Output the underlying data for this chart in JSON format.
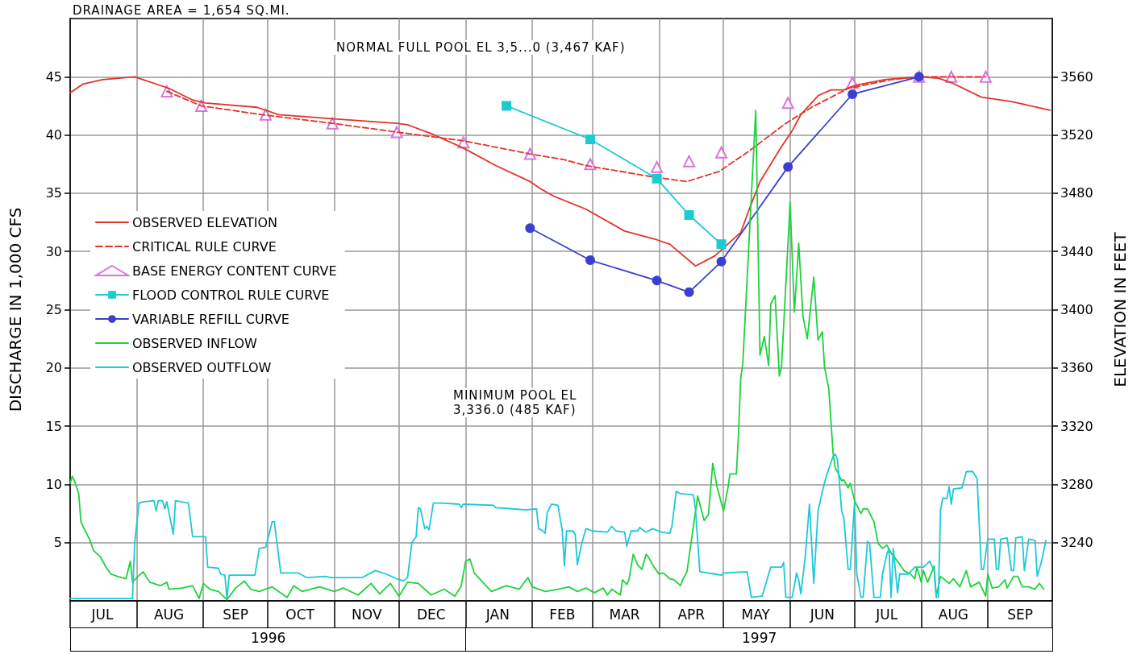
{
  "chart_data": {
    "type": "line",
    "ylabel": "DISCHARGE IN 1,000 CFS",
    "y2label": "ELEVATION IN FEET",
    "annotations": [
      "DRAINAGE AREA = 1,654 SQ.MI.",
      "NORMAL FULL POOL EL 3,5...0 (3,467 KAF)",
      "MINIMUM POOL EL\n3,336.0 (485 KAF)",
      "1996",
      "1997"
    ],
    "xlim": [
      "1996-07-01",
      "1997-10-01"
    ],
    "xticks": [
      {
        "value": "1996-07-01",
        "label": null
      },
      {
        "value": "1996-08-01",
        "label": null
      },
      {
        "value": "1996-09-01",
        "label": null
      },
      {
        "value": "1996-10-01",
        "label": null
      },
      {
        "value": "1996-11-01",
        "label": null
      },
      {
        "value": "1996-12-01",
        "label": null
      },
      {
        "value": "1997-01-01",
        "label": null
      },
      {
        "value": "1997-02-01",
        "label": null
      },
      {
        "value": "1997-03-01",
        "label": null
      },
      {
        "value": "1997-04-01",
        "label": null
      },
      {
        "value": "1997-05-01",
        "label": null
      },
      {
        "value": "1997-06-01",
        "label": null
      },
      {
        "value": "1997-07-01",
        "label": null
      },
      {
        "value": "1997-08-01",
        "label": null
      },
      {
        "value": "1997-09-01",
        "label": null
      },
      {
        "value": "1997-10-01",
        "label": null
      },
      {
        "value": "1996-07-16",
        "label": "JUL"
      },
      {
        "value": "1996-08-16",
        "label": "AUG"
      },
      {
        "value": "1996-09-16",
        "label": "SEP"
      },
      {
        "value": "1996-10-16",
        "label": "OCT"
      },
      {
        "value": "1996-11-16",
        "label": "NOV"
      },
      {
        "value": "1996-12-16",
        "label": "DEC"
      },
      {
        "value": "1997-01-16",
        "label": "JAN"
      },
      {
        "value": "1997-02-15",
        "label": "FEB"
      },
      {
        "value": "1997-03-16",
        "label": "MAR"
      },
      {
        "value": "1997-04-16",
        "label": "APR"
      },
      {
        "value": "1997-05-16",
        "label": "MAY"
      },
      {
        "value": "1997-06-16",
        "label": "JUN"
      },
      {
        "value": "1997-07-16",
        "label": "JUL"
      },
      {
        "value": "1997-08-16",
        "label": "AUG"
      },
      {
        "value": "1997-09-16",
        "label": "SEP"
      }
    ],
    "ylim": [
      0,
      50
    ],
    "yticks": [
      5,
      10,
      15,
      20,
      25,
      30,
      35,
      40,
      45
    ],
    "y2lim": [
      3200,
      3600
    ],
    "y2ticks": [
      3240,
      3280,
      3320,
      3360,
      3400,
      3440,
      3480,
      3520,
      3560
    ],
    "grid": true,
    "legend": "left",
    "series": [
      {
        "name": "OBSERVED ELEVATION",
        "axis": "y2",
        "color": "#e0352b",
        "marker": "none",
        "line_style": "solid",
        "x": [
          "1996-07-01",
          "1996-07-07",
          "1996-07-16",
          "1996-07-31",
          "1996-08-16",
          "1996-08-27",
          "1996-09-02",
          "1996-09-26",
          "1996-10-06",
          "1996-11-01",
          "1996-11-30",
          "1996-12-05",
          "1996-12-16",
          "1996-12-31",
          "1997-01-15",
          "1997-01-31",
          "1997-02-05",
          "1997-02-11",
          "1997-02-26",
          "1997-03-16",
          "1997-03-31",
          "1997-04-06",
          "1997-04-18",
          "1997-04-27",
          "1997-05-09",
          "1997-05-13",
          "1997-05-18",
          "1997-05-28",
          "1997-06-02",
          "1997-06-06",
          "1997-06-14",
          "1997-06-20",
          "1997-06-26",
          "1997-07-01",
          "1997-07-15",
          "1997-07-31",
          "1997-08-09",
          "1997-08-15",
          "1997-08-29",
          "1997-09-12",
          "1997-09-30"
        ],
        "values": [
          3549,
          3555,
          3558,
          3560,
          3552,
          3544,
          3542,
          3539,
          3534,
          3531,
          3528,
          3527,
          3521,
          3511,
          3499,
          3488,
          3483,
          3478,
          3469,
          3454,
          3448,
          3445,
          3430,
          3437,
          3453,
          3469,
          3488,
          3512,
          3523,
          3534,
          3547,
          3551,
          3551,
          3554,
          3558,
          3560,
          3559,
          3556,
          3546,
          3543,
          3537
        ]
      },
      {
        "name": "CRITICAL RULE CURVE",
        "axis": "y2",
        "color": "#e0352b",
        "marker": "none",
        "line_style": "dashed",
        "x": [
          "1996-08-15",
          "1996-08-31",
          "1996-09-28",
          "1996-10-31",
          "1996-11-30",
          "1996-12-31",
          "1997-01-31",
          "1997-02-16",
          "1997-02-26",
          "1997-03-30",
          "1997-04-14",
          "1997-04-29",
          "1997-05-12",
          "1997-05-30",
          "1997-06-11",
          "1997-06-28",
          "1997-07-18",
          "1997-07-31",
          "1997-08-31"
        ],
        "values": [
          3550,
          3540,
          3534,
          3528,
          3522,
          3516,
          3507,
          3503,
          3499,
          3491,
          3488,
          3495,
          3508,
          3528,
          3539,
          3552,
          3558,
          3560,
          3560
        ]
      },
      {
        "name": "BASE ENERGY CONTENT CURVE",
        "type": "scatter",
        "axis": "y2",
        "color": "#d64fd6",
        "marker": "triangle",
        "x": [
          "1996-08-15",
          "1996-08-31",
          "1996-09-30",
          "1996-10-31",
          "1996-11-30",
          "1996-12-31",
          "1997-01-31",
          "1997-02-28",
          "1997-03-31",
          "1997-04-15",
          "1997-04-30",
          "1997-05-31",
          "1997-06-30",
          "1997-07-31",
          "1997-08-15",
          "1997-08-31"
        ],
        "values": [
          3550,
          3540,
          3534,
          3528,
          3522,
          3515,
          3507,
          3500,
          3498,
          3502,
          3508,
          3542,
          3556,
          3560,
          3560,
          3560
        ]
      },
      {
        "name": "FLOOD CONTROL RULE CURVE",
        "axis": "y2",
        "color": "#1ccbcf",
        "marker": "square",
        "line_style": "solid",
        "x": [
          "1997-01-20",
          "1997-02-28",
          "1997-03-31",
          "1997-04-15",
          "1997-04-30"
        ],
        "values": [
          3540,
          3517,
          3490,
          3465,
          3445
        ]
      },
      {
        "name": "VARIABLE REFILL CURVE",
        "axis": "y2",
        "color": "#3a3fd2",
        "marker": "circle",
        "line_style": "solid",
        "x": [
          "1997-01-31",
          "1997-02-28",
          "1997-03-31",
          "1997-04-15",
          "1997-04-30",
          "1997-05-31",
          "1997-06-30",
          "1997-07-31"
        ],
        "values": [
          3456,
          3434,
          3420,
          3412,
          3433,
          3498,
          3548,
          3560
        ]
      },
      {
        "name": "OBSERVED INFLOW",
        "color": "#1ed23c",
        "marker": "none",
        "line_style": "solid",
        "x": [
          "1996-07-01",
          "1996-07-02",
          "1996-07-03",
          "1996-07-05",
          "1996-07-06",
          "1996-07-08",
          "1996-07-10",
          "1996-07-12",
          "1996-07-15",
          "1996-07-18",
          "1996-07-20",
          "1996-07-23",
          "1996-07-27",
          "1996-07-29",
          "1996-07-30",
          "1996-08-01",
          "1996-08-04",
          "1996-08-07",
          "1996-08-12",
          "1996-08-15",
          "1996-08-16",
          "1996-08-22",
          "1996-08-27",
          "1996-08-30",
          "1996-09-01",
          "1996-09-04",
          "1996-09-08",
          "1996-09-12",
          "1996-09-16",
          "1996-09-20",
          "1996-09-23",
          "1996-09-27",
          "1996-10-03",
          "1996-10-10",
          "1996-10-13",
          "1996-10-17",
          "1996-10-25",
          "1996-11-01",
          "1996-11-05",
          "1996-11-12",
          "1996-11-18",
          "1996-11-22",
          "1996-11-27",
          "1996-12-01",
          "1996-12-05",
          "1996-12-10",
          "1996-12-16",
          "1996-12-22",
          "1996-12-27",
          "1996-12-30",
          "1997-01-01",
          "1997-01-03",
          "1997-01-05",
          "1997-01-09",
          "1997-01-13",
          "1997-01-20",
          "1997-01-26",
          "1997-01-30",
          "1997-02-01",
          "1997-02-07",
          "1997-02-13",
          "1997-02-18",
          "1997-02-22",
          "1997-02-26",
          "1997-03-02",
          "1997-03-06",
          "1997-03-08",
          "1997-03-10",
          "1997-03-14",
          "1997-03-15",
          "1997-03-17",
          "1997-03-18",
          "1997-03-20",
          "1997-03-22",
          "1997-03-24",
          "1997-03-26",
          "1997-03-27",
          "1997-03-29",
          "1997-04-01",
          "1997-04-03",
          "1997-04-06",
          "1997-04-08",
          "1997-04-11",
          "1997-04-12",
          "1997-04-14",
          "1997-04-16",
          "1997-04-19",
          "1997-04-22",
          "1997-04-24",
          "1997-04-26",
          "1997-04-28",
          "1997-05-01",
          "1997-05-03",
          "1997-05-04",
          "1997-05-07",
          "1997-05-08",
          "1997-05-09",
          "1997-05-10",
          "1997-05-16",
          "1997-05-18",
          "1997-05-20",
          "1997-05-22",
          "1997-05-23",
          "1997-05-25",
          "1997-05-27",
          "1997-05-28",
          "1997-06-01",
          "1997-06-03",
          "1997-06-05",
          "1997-06-07",
          "1997-06-09",
          "1997-06-12",
          "1997-06-14",
          "1997-06-16",
          "1997-06-17",
          "1997-06-19",
          "1997-06-21",
          "1997-06-22",
          "1997-06-23",
          "1997-06-25",
          "1997-06-26",
          "1997-06-28",
          "1997-06-29",
          "1997-07-01",
          "1997-07-04",
          "1997-07-05",
          "1997-07-07",
          "1997-07-10",
          "1997-07-12",
          "1997-07-14",
          "1997-07-16",
          "1997-07-18",
          "1997-07-21",
          "1997-07-24",
          "1997-07-27",
          "1997-07-29",
          "1997-07-30",
          "1997-08-01",
          "1997-08-02",
          "1997-08-04",
          "1997-08-07",
          "1997-08-08",
          "1997-08-10",
          "1997-08-14",
          "1997-08-16",
          "1997-08-19",
          "1997-08-22",
          "1997-08-24",
          "1997-08-28",
          "1997-08-31",
          "1997-09-01",
          "1997-09-03",
          "1997-09-06",
          "1997-09-09",
          "1997-09-10",
          "1997-09-13",
          "1997-09-15",
          "1997-09-17",
          "1997-09-20",
          "1997-09-23",
          "1997-09-25",
          "1997-09-27"
        ],
        "values": [
          10.1,
          10.7,
          10.3,
          9.2,
          6.8,
          6.0,
          5.3,
          4.3,
          3.8,
          2.8,
          2.3,
          2.1,
          1.9,
          3.4,
          1.6,
          2.0,
          2.5,
          1.6,
          1.3,
          1.6,
          1.0,
          1.1,
          1.3,
          0.2,
          1.5,
          1.0,
          0.8,
          0.1,
          1.1,
          1.7,
          1.0,
          0.8,
          1.2,
          0.3,
          1.3,
          0.8,
          1.2,
          0.8,
          1.1,
          0.5,
          1.5,
          0.6,
          1.5,
          0.4,
          1.6,
          1.5,
          0.5,
          1.0,
          0.4,
          1.3,
          3.4,
          3.6,
          2.4,
          1.6,
          0.8,
          1.3,
          1.0,
          2.0,
          1.2,
          0.8,
          1.0,
          1.2,
          0.8,
          1.1,
          0.7,
          1.1,
          0.5,
          1.0,
          0.5,
          1.8,
          1.4,
          1.8,
          4.0,
          3.1,
          2.7,
          4.0,
          3.8,
          3.1,
          2.3,
          2.4,
          1.9,
          1.8,
          1.3,
          1.8,
          2.5,
          5.1,
          9.0,
          6.9,
          7.4,
          11.8,
          9.8,
          7.7,
          9.6,
          10.9,
          10.9,
          14.4,
          19.1,
          20.4,
          42.1,
          21.1,
          22.7,
          20.2,
          25.5,
          26.2,
          19.3,
          20.1,
          34.2,
          24.8,
          30.7,
          24.4,
          22.5,
          27.8,
          22.4,
          23.1,
          20.1,
          18.2,
          12.7,
          11.4,
          11.1,
          10.3,
          10.4,
          9.7,
          10.1,
          8.6,
          7.5,
          7.9,
          7.9,
          6.8,
          4.9,
          4.5,
          4.8,
          4.1,
          3.4,
          2.6,
          2.3,
          1.9,
          2.9,
          1.6,
          2.6,
          1.6,
          3.0,
          0.4,
          2.1,
          1.5,
          1.9,
          1.2,
          2.6,
          1.2,
          1.6,
          0.4,
          2.3,
          1.1,
          1.2,
          1.8,
          1.1,
          2.1,
          2.1,
          1.2,
          1.2,
          1.0,
          1.5,
          1.0
        ]
      },
      {
        "name": "OBSERVED OUTFLOW",
        "color": "#1cc9d9",
        "marker": "none",
        "line_style": "solid",
        "x": [
          "1996-07-01",
          "1996-07-09",
          "1996-07-30",
          "1996-07-31",
          "1996-08-02",
          "1996-08-04",
          "1996-08-09",
          "1996-08-10",
          "1996-08-11",
          "1996-08-13",
          "1996-08-14",
          "1996-08-15",
          "1996-08-18",
          "1996-08-19",
          "1996-08-25",
          "1996-08-27",
          "1996-09-02",
          "1996-09-03",
          "1996-09-08",
          "1996-09-09",
          "1996-09-11",
          "1996-09-12",
          "1996-09-13",
          "1996-09-25",
          "1996-09-27",
          "1996-09-30",
          "1996-10-03",
          "1996-10-04",
          "1996-10-07",
          "1996-10-15",
          "1996-10-19",
          "1996-10-28",
          "1996-10-30",
          "1996-11-14",
          "1996-11-20",
          "1996-11-25",
          "1996-11-30",
          "1996-12-03",
          "1996-12-05",
          "1996-12-07",
          "1996-12-09",
          "1996-12-10",
          "1996-12-11",
          "1996-12-13",
          "1996-12-14",
          "1996-12-15",
          "1996-12-17",
          "1996-12-21",
          "1996-12-29",
          "1996-12-30",
          "1996-12-31",
          "1997-01-14",
          "1997-01-15",
          "1997-01-23",
          "1997-01-29",
          "1997-02-03",
          "1997-02-04",
          "1997-02-06",
          "1997-02-07",
          "1997-02-08",
          "1997-02-10",
          "1997-02-13",
          "1997-02-15",
          "1997-02-16",
          "1997-02-17",
          "1997-02-20",
          "1997-02-21",
          "1997-02-22",
          "1997-02-24",
          "1997-02-26",
          "1997-03-01",
          "1997-03-08",
          "1997-03-10",
          "1997-03-12",
          "1997-03-16",
          "1997-03-17",
          "1997-03-19",
          "1997-03-22",
          "1997-03-23",
          "1997-03-26",
          "1997-03-29",
          "1997-04-02",
          "1997-04-06",
          "1997-04-07",
          "1997-04-09",
          "1997-04-11",
          "1997-04-17",
          "1997-04-18",
          "1997-04-20",
          "1997-04-27",
          "1997-04-30",
          "1997-05-01",
          "1997-05-12",
          "1997-05-14",
          "1997-05-19",
          "1997-05-23",
          "1997-05-28",
          "1997-05-29",
          "1997-05-30",
          "1997-06-02",
          "1997-06-04",
          "1997-06-05",
          "1997-06-06",
          "1997-06-08",
          "1997-06-10",
          "1997-06-12",
          "1997-06-14",
          "1997-06-16",
          "1997-06-18",
          "1997-06-21",
          "1997-06-22",
          "1997-06-23",
          "1997-06-25",
          "1997-06-26",
          "1997-06-28",
          "1997-06-29",
          "1997-07-01",
          "1997-07-02",
          "1997-07-04",
          "1997-07-05",
          "1997-07-07",
          "1997-07-08",
          "1997-07-10",
          "1997-07-13",
          "1997-07-14",
          "1997-07-16",
          "1997-07-17",
          "1997-07-18",
          "1997-07-19",
          "1997-07-21",
          "1997-07-22",
          "1997-07-26",
          "1997-07-29",
          "1997-08-02",
          "1997-08-05",
          "1997-08-07",
          "1997-08-08",
          "1997-08-09",
          "1997-08-10",
          "1997-08-11",
          "1997-08-13",
          "1997-08-14",
          "1997-08-15",
          "1997-08-16",
          "1997-08-20",
          "1997-08-22",
          "1997-08-25",
          "1997-08-27",
          "1997-08-29",
          "1997-08-30",
          "1997-09-01",
          "1997-09-04",
          "1997-09-05",
          "1997-09-06",
          "1997-09-07",
          "1997-09-10",
          "1997-09-12",
          "1997-09-13",
          "1997-09-14",
          "1997-09-17",
          "1997-09-18",
          "1997-09-20",
          "1997-09-23",
          "1997-09-24",
          "1997-09-26",
          "1997-09-28"
        ],
        "values": [
          0.2,
          0.2,
          0.2,
          4.9,
          8.4,
          8.5,
          8.6,
          7.7,
          8.6,
          8.6,
          7.9,
          8.5,
          5.7,
          8.6,
          8.4,
          5.5,
          5.5,
          2.9,
          2.8,
          2.3,
          2.2,
          0.2,
          2.2,
          2.2,
          4.5,
          4.6,
          6.8,
          6.8,
          2.4,
          2.4,
          2.0,
          2.1,
          2.0,
          2.0,
          2.6,
          2.3,
          1.9,
          1.7,
          2.0,
          5.0,
          5.5,
          8.0,
          7.9,
          6.2,
          6.4,
          6.1,
          8.4,
          8.4,
          8.3,
          8.0,
          8.3,
          8.2,
          8.0,
          7.9,
          7.8,
          7.9,
          6.2,
          6.0,
          5.8,
          7.6,
          8.3,
          8.2,
          6.0,
          3.0,
          6.0,
          6.0,
          5.7,
          3.1,
          4.9,
          6.2,
          6.0,
          5.9,
          6.4,
          6.0,
          5.9,
          4.7,
          6.0,
          6.0,
          6.3,
          5.9,
          6.2,
          5.9,
          5.8,
          6.4,
          9.4,
          9.2,
          9.1,
          7.8,
          2.5,
          2.3,
          2.2,
          2.4,
          2.5,
          0.3,
          0.4,
          2.9,
          2.9,
          3.3,
          0.3,
          0.3,
          2.4,
          1.8,
          0.6,
          3.7,
          8.3,
          1.5,
          7.7,
          9.4,
          10.8,
          12.4,
          12.6,
          12.2,
          7.7,
          7.1,
          2.7,
          2.7,
          8.5,
          2.3,
          0.3,
          0.3,
          5.1,
          4.9,
          0.3,
          0.3,
          2.3,
          4.0,
          4.5,
          0.3,
          4.5,
          0.7,
          2.3,
          2.3,
          2.9,
          2.9,
          3.4,
          2.6,
          0.3,
          0.3,
          7.8,
          8.8,
          8.8,
          9.8,
          8.3,
          9.6,
          9.7,
          11.1,
          11.1,
          10.5,
          2.7,
          2.7,
          5.3,
          5.3,
          2.7,
          2.7,
          5.3,
          5.4,
          2.6,
          2.6,
          5.4,
          5.5,
          2.6,
          5.3,
          5.2,
          2.1,
          3.4,
          5.2
        ]
      }
    ]
  }
}
